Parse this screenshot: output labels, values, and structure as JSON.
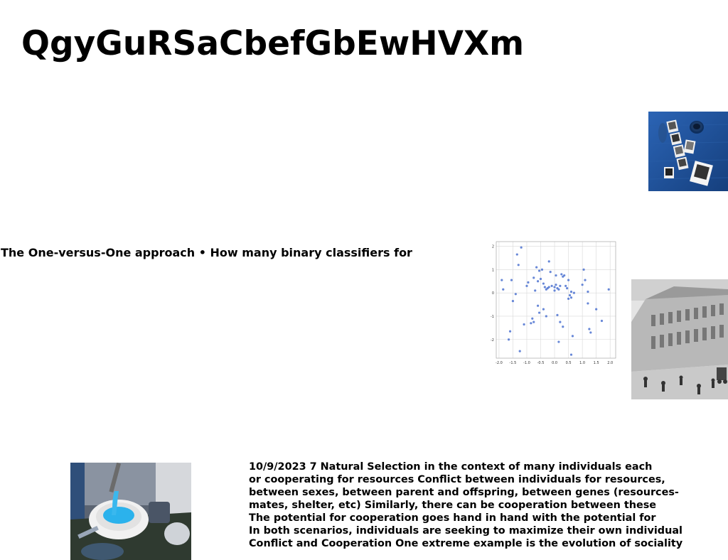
{
  "page": {
    "title": "QgyGuRSaCbefGbEwHVXm",
    "line_text": "The One-versus-One approach • How many binary classifiers for",
    "paragraph_lines": [
      "10/9/2023 7 Natural Selection in the context of many individuals each",
      "or cooperating for resources Conflict between individuals for resources,",
      "between sexes, between parent and offspring, between genes (resources-",
      "mates, shelter, etc) Similarly, there can be cooperation between these",
      "The potential for cooperation goes hand in hand with the potential for",
      "In both scenarios, individuals are seeking to maximize their own individual",
      "Conflict and Cooperation One extreme example is the evolution of sociality"
    ]
  },
  "images": {
    "desk_photo": "blue desk with polaroid photos and coffee cup",
    "building_photo": "black and white photo of a classical building with street scene",
    "food_photo": "bowl of blue soup on a table setting"
  },
  "chart_data": {
    "type": "scatter",
    "title": "",
    "xlabel": "",
    "ylabel": "",
    "xlim": [
      -2.1,
      2.2
    ],
    "ylim": [
      -2.8,
      2.2
    ],
    "xticks": [
      "-2.0",
      "-1.5",
      "-1.0",
      "-0.5",
      "0.0",
      "0.5",
      "1.0",
      "1.5",
      "2.0"
    ],
    "yticks": [
      "2",
      "1",
      "0",
      "-1",
      "-2"
    ],
    "grid": true,
    "color": "#4c72d0",
    "x": [
      -1.2,
      -1.35,
      -1.3,
      -1.55,
      -1.9,
      -1.85,
      -1.5,
      -1.4,
      -1.6,
      -1.65,
      -1.0,
      -0.95,
      -0.75,
      -0.7,
      -0.65,
      -0.6,
      -0.55,
      -0.5,
      -0.45,
      -0.4,
      -0.35,
      -0.3,
      -0.25,
      -0.2,
      -0.2,
      -0.15,
      -0.1,
      0.0,
      0.0,
      0.05,
      0.05,
      0.1,
      0.15,
      0.2,
      0.25,
      0.3,
      0.35,
      0.4,
      0.45,
      0.5,
      0.5,
      0.55,
      0.6,
      0.6,
      0.65,
      0.7,
      1.0,
      1.05,
      1.1,
      1.2,
      1.2,
      1.25,
      1.3,
      1.5,
      1.7,
      1.95,
      -0.8,
      -0.75,
      -0.6,
      -0.55,
      -0.4,
      -0.3,
      0.1,
      0.2,
      0.3,
      0.6,
      -1.1,
      -0.85,
      0.15,
      -1.25
    ],
    "y": [
      1.95,
      1.65,
      1.2,
      0.55,
      0.55,
      0.15,
      -0.35,
      -0.05,
      -1.65,
      -2.0,
      0.3,
      0.45,
      0.65,
      0.1,
      1.1,
      0.5,
      0.95,
      0.6,
      1.0,
      0.4,
      0.25,
      0.15,
      0.2,
      0.25,
      1.35,
      0.9,
      0.3,
      0.25,
      0.1,
      0.75,
      0.35,
      0.2,
      0.15,
      0.3,
      0.8,
      0.7,
      0.75,
      0.3,
      0.2,
      0.55,
      -0.25,
      -0.1,
      0.05,
      -2.65,
      -1.85,
      0.0,
      0.35,
      1.0,
      0.55,
      0.05,
      -0.45,
      -1.55,
      -1.7,
      -0.7,
      -1.2,
      0.15,
      -1.1,
      -1.25,
      -0.55,
      -0.85,
      -0.7,
      -1.0,
      -0.95,
      -1.25,
      -1.45,
      -0.2,
      -1.35,
      -1.3,
      -2.1,
      -2.5
    ]
  }
}
